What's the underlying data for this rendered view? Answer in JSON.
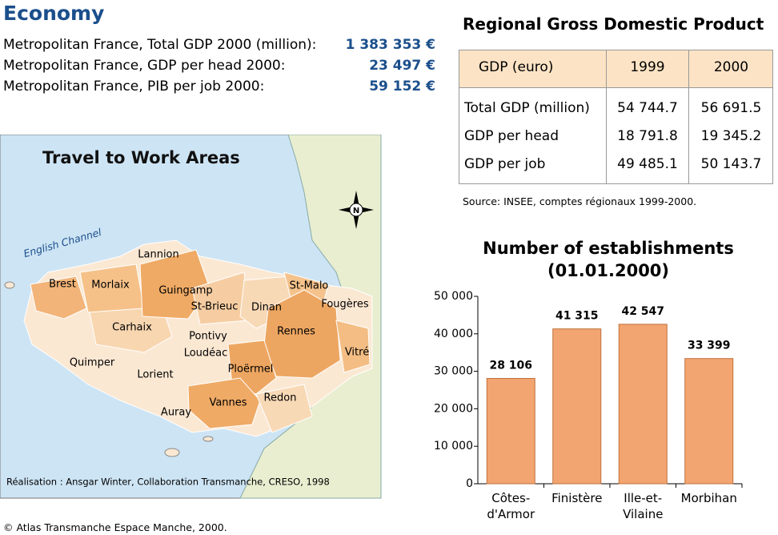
{
  "header": {
    "title": "Economy"
  },
  "stats": [
    {
      "label": "Metropolitan France, Total GDP 2000 (million):",
      "value": "1 383 353 €"
    },
    {
      "label": "Metropolitan France, GDP per head 2000:",
      "value": "23 497 €"
    },
    {
      "label": "Metropolitan France, PIB per job 2000:",
      "value": "59 152 €"
    }
  ],
  "table": {
    "title": "Regional Gross Domestic Product",
    "header": [
      "GDP (euro)",
      "1999",
      "2000"
    ],
    "rows": [
      [
        "Total GDP (million)",
        "54 744.7",
        "56 691.5"
      ],
      [
        "GDP per head",
        "18 791.8",
        "19 345.2"
      ],
      [
        "GDP per job",
        "49 485.1",
        "50 143.7"
      ]
    ],
    "source": "Source: INSEE, comptes régionaux 1999-2000."
  },
  "map": {
    "title": "Travel to Work Areas",
    "sea_label": "English Channel",
    "compass": "N",
    "labels": [
      "Lannion",
      "Brest",
      "Morlaix",
      "Guingamp",
      "St-Malo",
      "St-Brieuc",
      "Dinan",
      "Fougères",
      "Carhaix",
      "Pontivy",
      "Rennes",
      "Loudéac",
      "Vitré",
      "Quimper",
      "Ploërmel",
      "Lorient",
      "Vannes",
      "Redon",
      "Auray"
    ],
    "credit": "Réalisation : Ansgar Winter, Collaboration Transmanche, CRESO, 1998"
  },
  "footer": "© Atlas Transmanche Espace Manche, 2000.",
  "chart_data": {
    "type": "bar",
    "title": "Number of establishments",
    "subtitle": "(01.01.2000)",
    "categories": [
      "Côtes-d'Armor",
      "Finistère",
      "Ille-et-Vilaine",
      "Morbihan"
    ],
    "values": [
      28106,
      41315,
      42547,
      33399
    ],
    "value_labels": [
      "28 106",
      "41 315",
      "42 547",
      "33 399"
    ],
    "color": "#f2a571",
    "ylim": [
      0,
      50000
    ],
    "yticks": [
      0,
      {
        "value": 10000,
        "label": "10 000"
      },
      {
        "value": 20000,
        "label": "20 000"
      },
      {
        "value": 30000,
        "label": "30 000"
      },
      {
        "value": 40000,
        "label": "40 000"
      },
      {
        "value": 50000,
        "label": "50 000"
      }
    ]
  }
}
